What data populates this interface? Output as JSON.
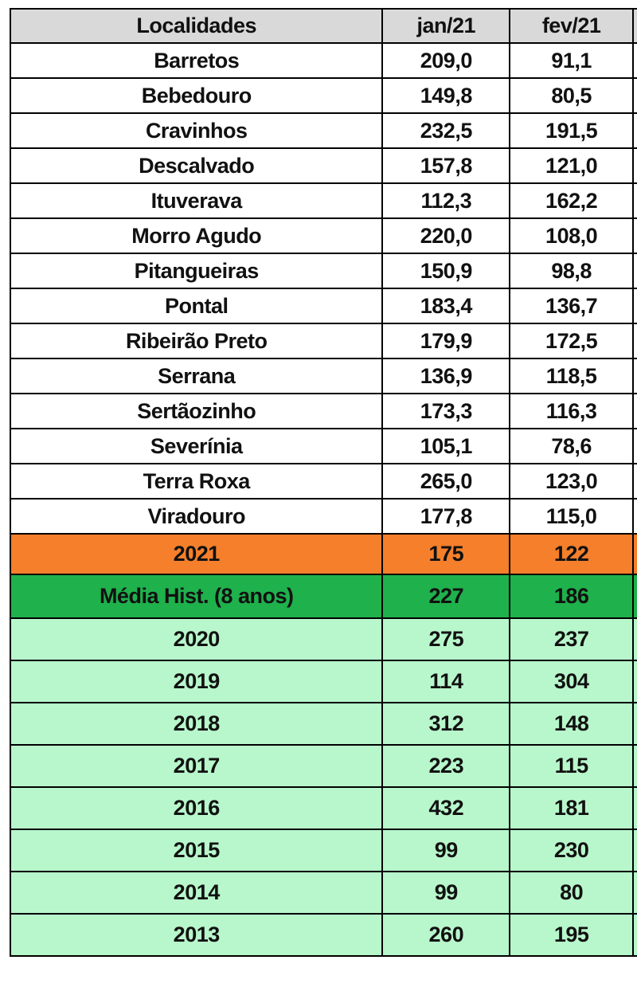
{
  "table": {
    "header": [
      "Localidades",
      "jan/21",
      "fev/21"
    ],
    "locations": [
      [
        "Barretos",
        "209,0",
        "91,1"
      ],
      [
        "Bebedouro",
        "149,8",
        "80,5"
      ],
      [
        "Cravinhos",
        "232,5",
        "191,5"
      ],
      [
        "Descalvado",
        "157,8",
        "121,0"
      ],
      [
        "Ituverava",
        "112,3",
        "162,2"
      ],
      [
        "Morro Agudo",
        "220,0",
        "108,0"
      ],
      [
        "Pitangueiras",
        "150,9",
        "98,8"
      ],
      [
        "Pontal",
        "183,4",
        "136,7"
      ],
      [
        "Ribeirão Preto",
        "179,9",
        "172,5"
      ],
      [
        "Serrana",
        "136,9",
        "118,5"
      ],
      [
        "Sertãozinho",
        "173,3",
        "116,3"
      ],
      [
        "Severínia",
        "105,1",
        "78,6"
      ],
      [
        "Terra Roxa",
        "265,0",
        "123,0"
      ],
      [
        "Viradouro",
        "177,8",
        "115,0"
      ]
    ],
    "current": [
      "2021",
      "175",
      "122"
    ],
    "average": [
      "Média Hist. (8 anos)",
      "227",
      "186"
    ],
    "history": [
      [
        "2020",
        "275",
        "237"
      ],
      [
        "2019",
        "114",
        "304"
      ],
      [
        "2018",
        "312",
        "148"
      ],
      [
        "2017",
        "223",
        "115"
      ],
      [
        "2016",
        "432",
        "181"
      ],
      [
        "2015",
        "99",
        "230"
      ],
      [
        "2014",
        "99",
        "80"
      ],
      [
        "2013",
        "260",
        "195"
      ]
    ]
  }
}
